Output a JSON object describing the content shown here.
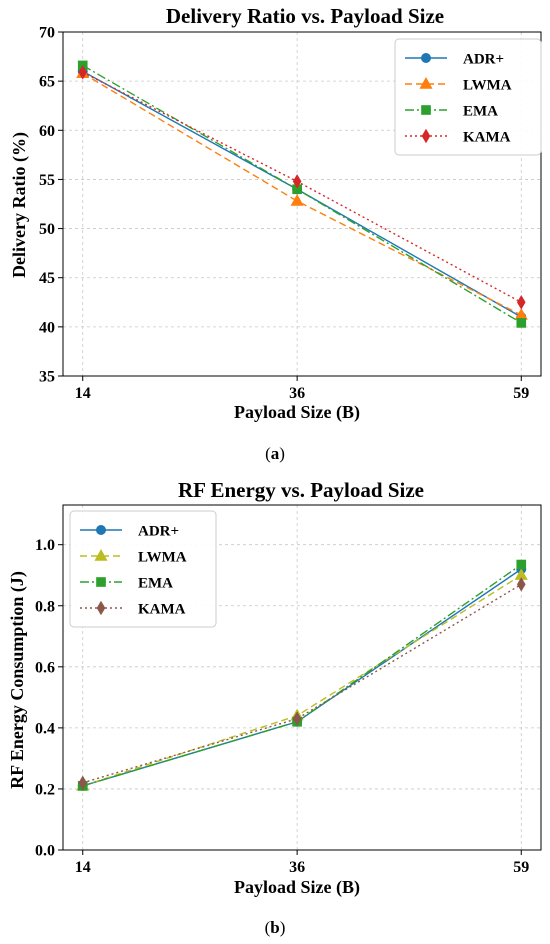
{
  "chart_data": [
    {
      "type": "line",
      "title": "Delivery Ratio vs. Payload Size",
      "xlabel": "Payload Size (B)",
      "ylabel": "Delivery Ratio (%)",
      "x": [
        14,
        36,
        59
      ],
      "x_ticks": [
        "14",
        "36",
        "59"
      ],
      "ylim": [
        35,
        70
      ],
      "y_ticks": [
        "35",
        "40",
        "45",
        "50",
        "55",
        "60",
        "65",
        "70"
      ],
      "grid": true,
      "legend_position": "top-right",
      "caption": "a",
      "series": [
        {
          "name": "ADR+",
          "values": [
            66.0,
            54.0,
            41.0
          ],
          "color": "#1f77b4",
          "dash": "solid",
          "marker": "circle"
        },
        {
          "name": "LWMA",
          "values": [
            65.8,
            52.8,
            41.2
          ],
          "color": "#ff7f0e",
          "dash": "dashed",
          "marker": "triangle"
        },
        {
          "name": "EMA",
          "values": [
            66.6,
            54.0,
            40.4
          ],
          "color": "#2ca02c",
          "dash": "dashdot",
          "marker": "square"
        },
        {
          "name": "KAMA",
          "values": [
            65.9,
            54.8,
            42.5
          ],
          "color": "#d62728",
          "dash": "dotted",
          "marker": "diamond"
        }
      ]
    },
    {
      "type": "line",
      "title": "RF Energy vs. Payload Size",
      "xlabel": "Payload Size (B)",
      "ylabel": "RF Energy Consumption (J)",
      "x": [
        14,
        36,
        59
      ],
      "x_ticks": [
        "14",
        "36",
        "59"
      ],
      "ylim": [
        0.0,
        1.13
      ],
      "y_ticks": [
        "0.0",
        "0.2",
        "0.4",
        "0.6",
        "0.8",
        "1.0"
      ],
      "grid": true,
      "legend_position": "top-left",
      "caption": "b",
      "series": [
        {
          "name": "ADR+",
          "values": [
            0.21,
            0.42,
            0.92
          ],
          "color": "#1f77b4",
          "dash": "solid",
          "marker": "circle"
        },
        {
          "name": "LWMA",
          "values": [
            0.21,
            0.44,
            0.9
          ],
          "color": "#bcbd22",
          "dash": "dashed",
          "marker": "triangle"
        },
        {
          "name": "EMA",
          "values": [
            0.21,
            0.42,
            0.935
          ],
          "color": "#2ca02c",
          "dash": "dashdot",
          "marker": "square"
        },
        {
          "name": "KAMA",
          "values": [
            0.22,
            0.43,
            0.87
          ],
          "color": "#8c564b",
          "dash": "dotted",
          "marker": "diamond"
        }
      ]
    }
  ]
}
